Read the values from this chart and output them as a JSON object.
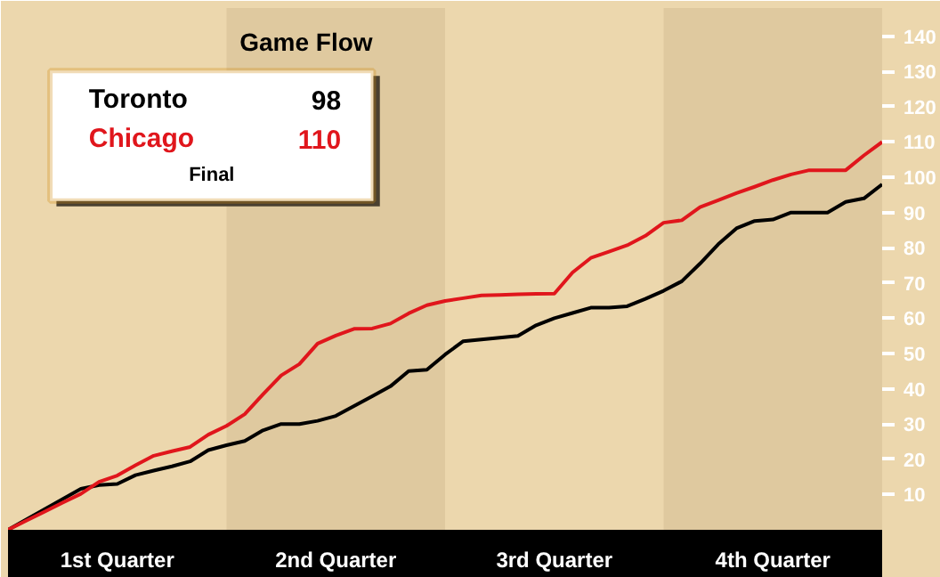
{
  "chart_data": {
    "type": "line",
    "title": "Game Flow",
    "categories": [
      null,
      null,
      null,
      null,
      null,
      null,
      "1st Quarter",
      null,
      null,
      null,
      null,
      null,
      null,
      null,
      null,
      null,
      null,
      null,
      "2nd Quarter",
      null,
      null,
      null,
      null,
      null,
      null,
      null,
      null,
      null,
      null,
      null,
      "3rd Quarter",
      null,
      null,
      null,
      null,
      null,
      null,
      null,
      null,
      null,
      null,
      null,
      "4th Quarter",
      null,
      null,
      null,
      null,
      null,
      null
    ],
    "ylim": [
      0,
      148
    ],
    "yticks": [
      10,
      20,
      30,
      40,
      50,
      60,
      70,
      80,
      90,
      100,
      110,
      120,
      130,
      140
    ],
    "series": [
      {
        "name": "Toronto",
        "color": "#000000",
        "values": [
          0,
          2.9,
          5.8,
          8.7,
          11.6,
          12.7,
          13,
          15.5,
          16.8,
          18,
          19.4,
          22.6,
          24,
          25.2,
          28.2,
          30,
          30,
          30.9,
          32.3,
          35.1,
          37.9,
          40.7,
          45,
          45.4,
          49.7,
          53.5,
          54,
          54.5,
          55,
          58,
          60,
          61.5,
          63,
          63,
          63.4,
          65.5,
          67.8,
          70.5,
          75.5,
          81,
          85.5,
          87.6,
          88,
          90,
          90,
          90,
          93,
          94,
          98
        ]
      },
      {
        "name": "Chicago",
        "color": "#e0161c",
        "values": [
          0,
          2.6,
          5.1,
          7.7,
          10.2,
          13.6,
          15.4,
          18.3,
          21,
          22.3,
          23.5,
          27,
          29.5,
          32.8,
          38.4,
          43.8,
          47,
          52.8,
          55.1,
          57,
          57.1,
          58.5,
          61.4,
          63.7,
          64.9,
          65.7,
          66.5,
          66.6,
          66.8,
          66.9,
          67,
          73,
          77.1,
          78.9,
          80.7,
          83.4,
          87.1,
          87.8,
          91.5,
          93.5,
          95.5,
          97.3,
          99.2,
          100.8,
          102,
          102,
          102,
          106.2,
          110
        ]
      }
    ],
    "annotations": [
      "98",
      "110",
      "Final"
    ],
    "legend": "top left",
    "grid": false
  }
}
